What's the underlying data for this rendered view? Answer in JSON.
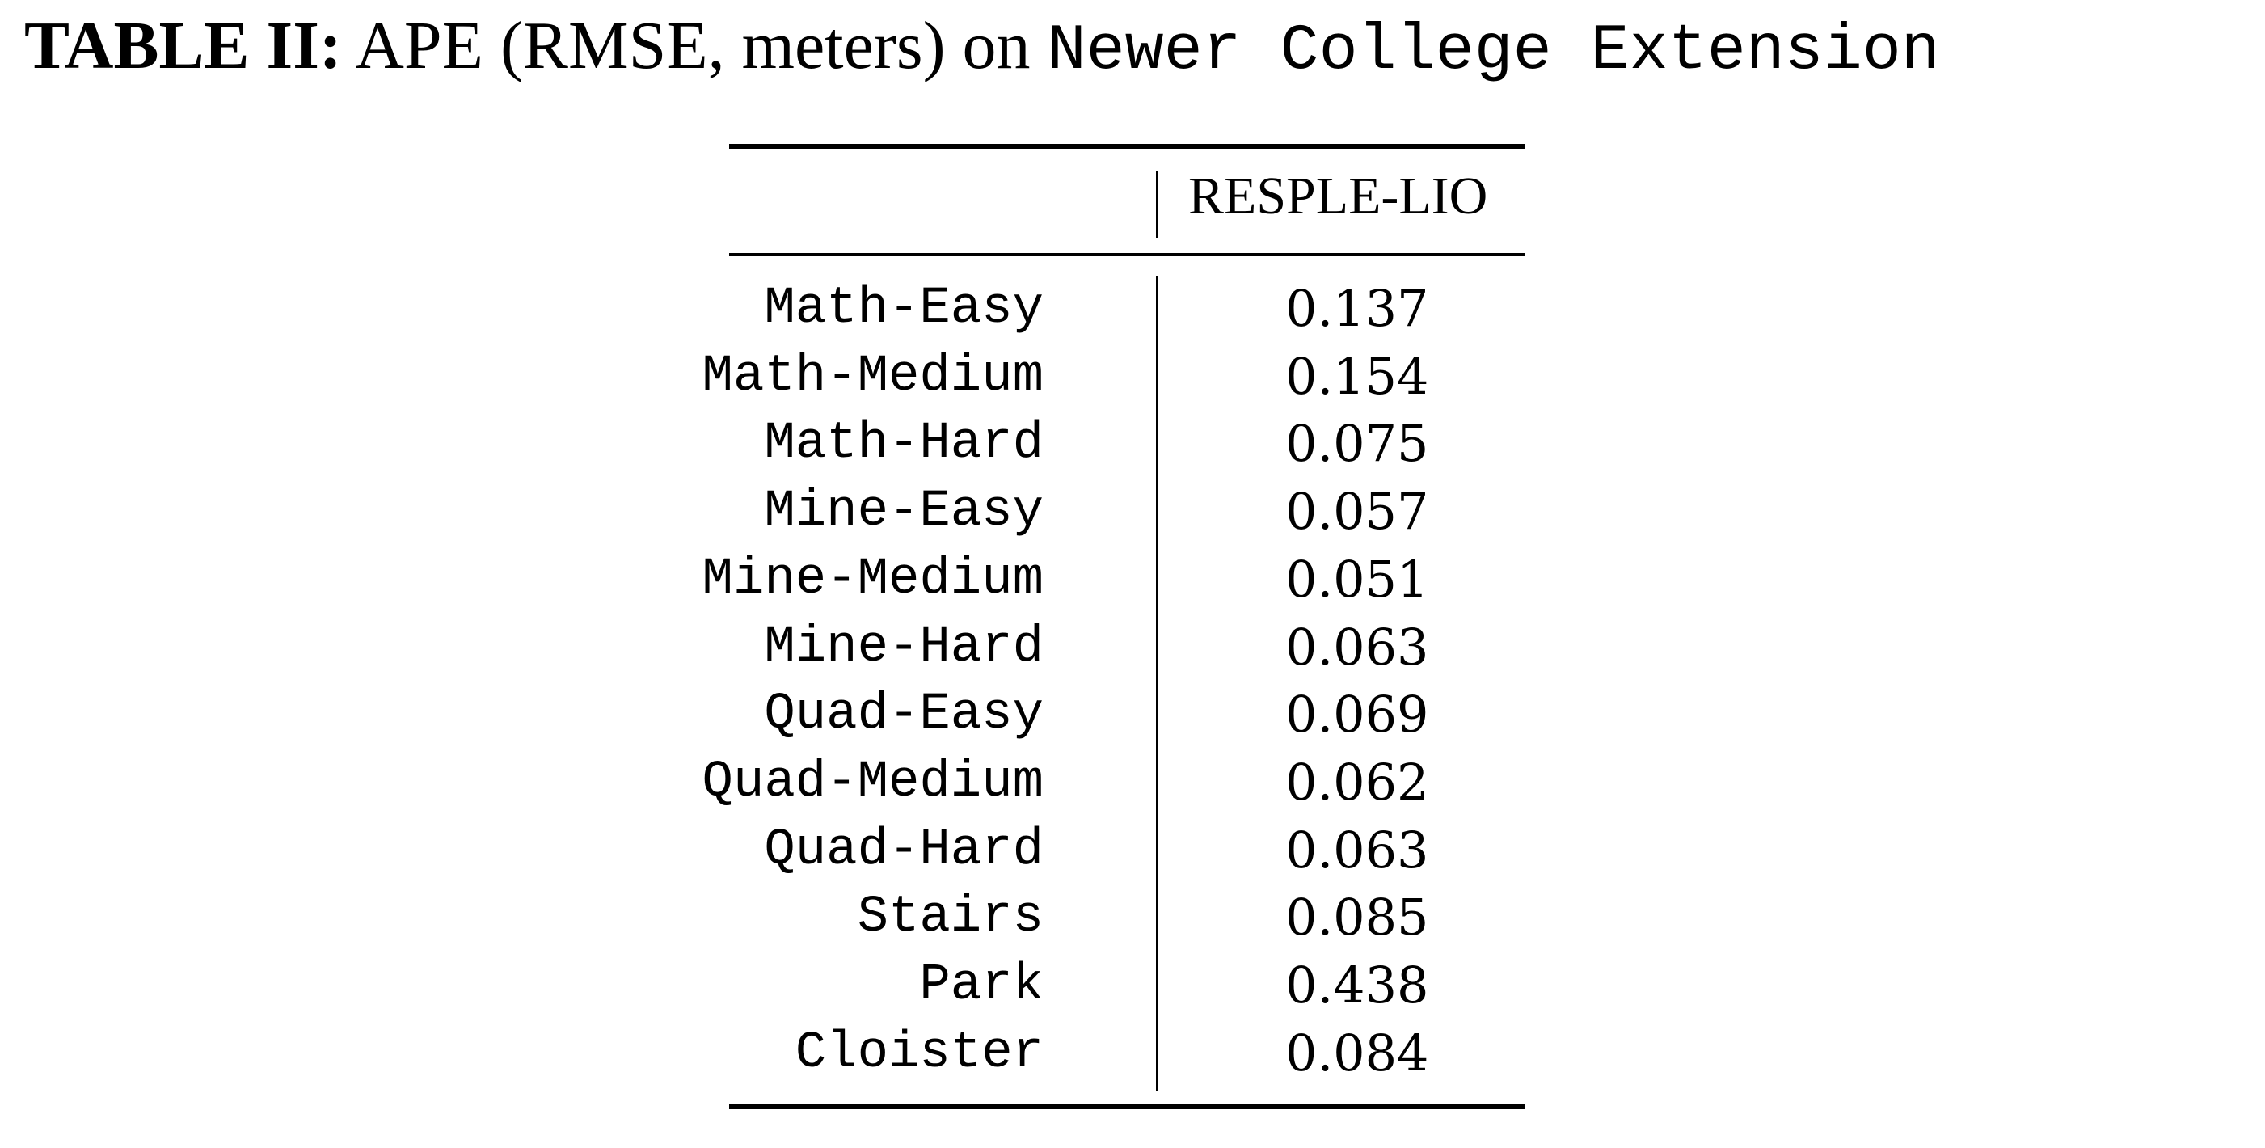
{
  "caption": {
    "label": "TABLE II:",
    "text": "APE (RMSE, meters) on",
    "dataset": "Newer College Extension"
  },
  "table": {
    "column_header": "RESPLE-LIO",
    "rows": [
      {
        "sequence": "Math-Easy",
        "value": "0.137"
      },
      {
        "sequence": "Math-Medium",
        "value": "0.154"
      },
      {
        "sequence": "Math-Hard",
        "value": "0.075"
      },
      {
        "sequence": "Mine-Easy",
        "value": "0.057"
      },
      {
        "sequence": "Mine-Medium",
        "value": "0.051"
      },
      {
        "sequence": "Mine-Hard",
        "value": "0.063"
      },
      {
        "sequence": "Quad-Easy",
        "value": "0.069"
      },
      {
        "sequence": "Quad-Medium",
        "value": "0.062"
      },
      {
        "sequence": "Quad-Hard",
        "value": "0.063"
      },
      {
        "sequence": "Stairs",
        "value": "0.085"
      },
      {
        "sequence": "Park",
        "value": "0.438"
      },
      {
        "sequence": "Cloister",
        "value": "0.084"
      }
    ]
  }
}
